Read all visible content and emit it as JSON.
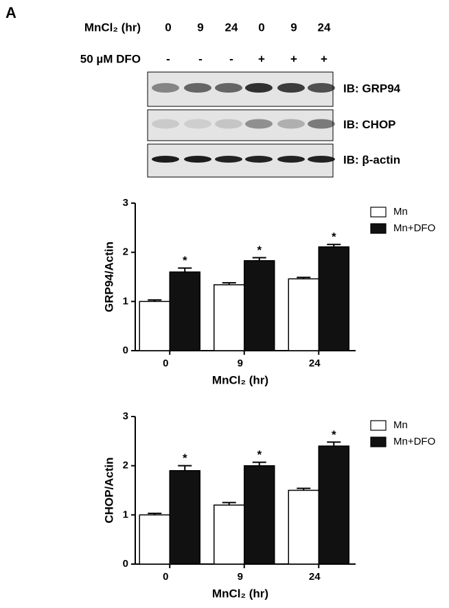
{
  "panel_label": "A",
  "blot": {
    "lane_rows": [
      {
        "label": "MnCl₂ (hr)",
        "lanes": [
          "0",
          "9",
          "24",
          "0",
          "9",
          "24"
        ]
      },
      {
        "label": "50 µM DFO",
        "lanes": [
          "-",
          "-",
          "-",
          "+",
          "+",
          "+"
        ]
      }
    ],
    "blots": [
      "IB: GRP94",
      "IB: CHOP",
      "IB: β-actin"
    ]
  },
  "chart_data": [
    {
      "type": "bar",
      "y_label": "GRP94/Actin",
      "x_label": "MnCl₂ (hr)",
      "categories": [
        "0",
        "9",
        "24"
      ],
      "series": [
        {
          "name": "Mn",
          "color": "#ffffff",
          "values": [
            1.0,
            1.34,
            1.46
          ],
          "errors": [
            0.03,
            0.04,
            0.03
          ]
        },
        {
          "name": "Mn+DFO",
          "color": "#111111",
          "values": [
            1.6,
            1.83,
            2.11
          ],
          "errors": [
            0.08,
            0.06,
            0.05
          ],
          "annotations": [
            "*",
            "*",
            "*"
          ]
        }
      ],
      "ylim": [
        0,
        3
      ],
      "yticks": [
        0,
        1,
        2,
        3
      ],
      "legend": "upper right"
    },
    {
      "type": "bar",
      "y_label": "CHOP/Actin",
      "x_label": "MnCl₂ (hr)",
      "categories": [
        "0",
        "9",
        "24"
      ],
      "series": [
        {
          "name": "Mn",
          "color": "#ffffff",
          "values": [
            1.0,
            1.2,
            1.5
          ],
          "errors": [
            0.03,
            0.05,
            0.04
          ]
        },
        {
          "name": "Mn+DFO",
          "color": "#111111",
          "values": [
            1.9,
            2.0,
            2.4
          ],
          "errors": [
            0.1,
            0.07,
            0.08
          ],
          "annotations": [
            "*",
            "*",
            "*"
          ]
        }
      ],
      "ylim": [
        0,
        3
      ],
      "yticks": [
        0,
        1,
        2,
        3
      ],
      "legend": "upper right"
    }
  ]
}
